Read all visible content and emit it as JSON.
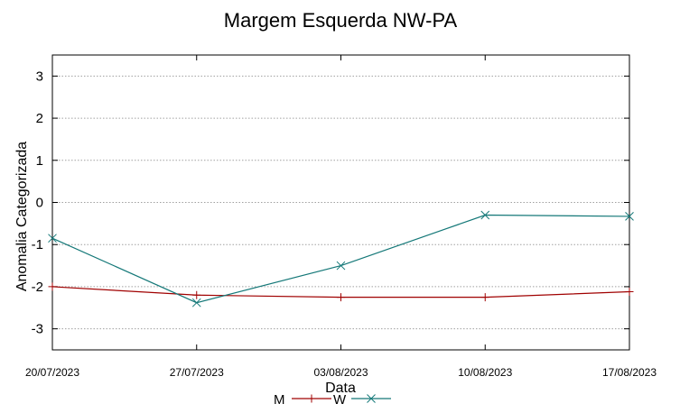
{
  "chart_data": {
    "type": "line",
    "title": "Margem Esquerda NW-PA",
    "xlabel": "Data",
    "ylabel": "Anomalia Categorizada",
    "x": [
      "20/07/2023",
      "27/07/2023",
      "03/08/2023",
      "10/08/2023",
      "17/08/2023"
    ],
    "xlim": [
      "20/07/2023",
      "17/08/2023"
    ],
    "ylim": [
      -3.5,
      3.5
    ],
    "yticks": [
      3,
      2,
      1,
      0,
      -1,
      -2,
      -3
    ],
    "ytick_labels": [
      "3",
      "2",
      "1",
      "0",
      "-1",
      "-2",
      "-3"
    ],
    "grid": true,
    "legend_position": "bottom-center",
    "series": [
      {
        "name": "M",
        "color": "#a00000",
        "marker": "plus",
        "values": [
          -2.0,
          -2.2,
          -2.25,
          -2.25,
          -2.12
        ]
      },
      {
        "name": "W",
        "color": "#147878",
        "marker": "cross",
        "values": [
          -0.85,
          -2.38,
          -1.5,
          -0.3,
          -0.33
        ]
      }
    ]
  }
}
